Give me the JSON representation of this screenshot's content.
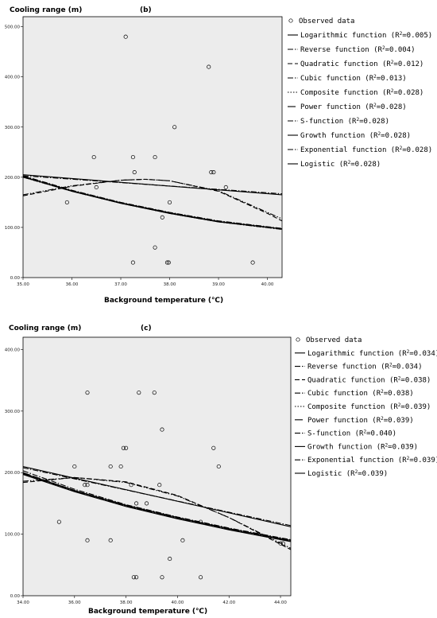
{
  "chart_data": [
    {
      "type": "scatter",
      "panel_label": "(b)",
      "ylabel": "Cooling range (m)",
      "xlabel": "Background temperature (℃)",
      "xlim": [
        35.0,
        40.3
      ],
      "ylim": [
        0,
        520
      ],
      "xticks": [
        "35.00",
        "36.00",
        "37.00",
        "38.00",
        "39.00",
        "40.00"
      ],
      "yticks": [
        "0.00",
        "100.00",
        "200.00",
        "300.00",
        "400.00",
        "500.00"
      ],
      "observed": {
        "label": "Observed data",
        "points": [
          [
            35.9,
            150
          ],
          [
            36.45,
            240
          ],
          [
            36.5,
            180
          ],
          [
            37.1,
            480
          ],
          [
            37.25,
            30
          ],
          [
            37.25,
            240
          ],
          [
            37.28,
            210
          ],
          [
            37.7,
            240
          ],
          [
            37.7,
            60
          ],
          [
            37.85,
            120
          ],
          [
            37.95,
            30
          ],
          [
            37.98,
            30
          ],
          [
            38.0,
            150
          ],
          [
            38.1,
            300
          ],
          [
            38.8,
            420
          ],
          [
            38.85,
            210
          ],
          [
            38.9,
            210
          ],
          [
            39.15,
            180
          ],
          [
            39.7,
            30
          ]
        ]
      },
      "series": [
        {
          "name": "Logarithmic function (R",
          "r2": "0.005",
          "style": "solid",
          "values": [
            [
              35.0,
              205
            ],
            [
              40.3,
              165
            ]
          ]
        },
        {
          "name": "Reverse function (R",
          "r2": "0.004",
          "style": "dashdot",
          "values": [
            [
              35.0,
              203
            ],
            [
              40.3,
              167
            ]
          ]
        },
        {
          "name": "Quadratic function (R",
          "r2": "0.012",
          "style": "dash",
          "values": [
            [
              35.0,
              163
            ],
            [
              36.0,
              182
            ],
            [
              37.0,
              194
            ],
            [
              37.5,
              196
            ],
            [
              38.0,
              193
            ],
            [
              39.0,
              172
            ],
            [
              40.0,
              128
            ],
            [
              40.3,
              113
            ]
          ]
        },
        {
          "name": "Cubic function (R",
          "r2": "0.013",
          "style": "dashdotdot",
          "values": [
            [
              35.0,
              165
            ],
            [
              36.0,
              183
            ],
            [
              37.0,
              194
            ],
            [
              37.5,
              196
            ],
            [
              38.0,
              193
            ],
            [
              39.0,
              173
            ],
            [
              40.0,
              130
            ],
            [
              40.3,
              117
            ]
          ]
        },
        {
          "name": "Composite function (R",
          "r2": "0.028",
          "style": "dot",
          "values": [
            [
              35.0,
              200
            ],
            [
              36.0,
              172
            ],
            [
              37.0,
              148
            ],
            [
              38.0,
              128
            ],
            [
              39.0,
              111
            ],
            [
              40.3,
              96
            ]
          ]
        },
        {
          "name": "Power function (R",
          "r2": "0.028",
          "style": "longdash",
          "values": [
            [
              35.0,
              202
            ],
            [
              36.0,
              173
            ],
            [
              37.0,
              149
            ],
            [
              38.0,
              129
            ],
            [
              39.0,
              112
            ],
            [
              40.3,
              97
            ]
          ]
        },
        {
          "name": "S-function (R",
          "r2": "0.028",
          "style": "dashdot",
          "values": [
            [
              35.0,
              203
            ],
            [
              36.0,
              174
            ],
            [
              37.0,
              150
            ],
            [
              38.0,
              130
            ],
            [
              39.0,
              113
            ],
            [
              40.3,
              98
            ]
          ]
        },
        {
          "name": "Growth function (R",
          "r2": "0.028",
          "style": "solid",
          "values": [
            [
              35.0,
              201
            ],
            [
              36.0,
              172
            ],
            [
              37.0,
              148
            ],
            [
              38.0,
              128
            ],
            [
              39.0,
              111
            ],
            [
              40.3,
              97
            ]
          ]
        },
        {
          "name": "Exponential function (R",
          "r2": "0.028",
          "style": "dashdot",
          "values": [
            [
              35.0,
              200
            ],
            [
              36.0,
              172
            ],
            [
              37.0,
              148
            ],
            [
              38.0,
              128
            ],
            [
              39.0,
              111
            ],
            [
              40.3,
              96
            ]
          ]
        },
        {
          "name": "Logistic  (R",
          "r2": "0.028",
          "style": "solid",
          "values": [
            [
              35.0,
              201
            ],
            [
              36.0,
              173
            ],
            [
              37.0,
              149
            ],
            [
              38.0,
              129
            ],
            [
              39.0,
              112
            ],
            [
              40.3,
              97
            ]
          ]
        }
      ]
    },
    {
      "type": "scatter",
      "panel_label": "(c)",
      "ylabel": "Cooling range (m)",
      "xlabel": "Background temperature (℃)",
      "xlim": [
        34.0,
        44.4
      ],
      "ylim": [
        0,
        420
      ],
      "xticks": [
        "34.00",
        "36.00",
        "38.00",
        "40.00",
        "42.00",
        "44.00"
      ],
      "yticks": [
        "0.00",
        "100.00",
        "200.00",
        "300.00",
        "400.00"
      ],
      "observed": {
        "label": "Observed data",
        "points": [
          [
            35.4,
            120
          ],
          [
            36.0,
            210
          ],
          [
            36.4,
            180
          ],
          [
            36.5,
            180
          ],
          [
            36.5,
            330
          ],
          [
            36.5,
            90
          ],
          [
            37.4,
            210
          ],
          [
            37.4,
            90
          ],
          [
            37.8,
            210
          ],
          [
            37.9,
            240
          ],
          [
            38.0,
            240
          ],
          [
            38.2,
            180
          ],
          [
            38.3,
            30
          ],
          [
            38.4,
            30
          ],
          [
            38.4,
            150
          ],
          [
            38.5,
            330
          ],
          [
            38.8,
            150
          ],
          [
            39.1,
            330
          ],
          [
            39.3,
            180
          ],
          [
            39.4,
            270
          ],
          [
            39.4,
            30
          ],
          [
            39.7,
            60
          ],
          [
            40.2,
            90
          ],
          [
            40.9,
            30
          ],
          [
            40.9,
            120
          ],
          [
            41.4,
            240
          ],
          [
            41.6,
            210
          ],
          [
            44.0,
            85
          ],
          [
            44.1,
            85
          ]
        ]
      },
      "series": [
        {
          "name": "Logarithmic function (R",
          "r2": "0.034",
          "style": "solid",
          "values": [
            [
              34.0,
              210
            ],
            [
              44.4,
              112
            ]
          ]
        },
        {
          "name": "Reverse function (R",
          "r2": "0.034",
          "style": "dashdot",
          "values": [
            [
              34.0,
              208
            ],
            [
              44.4,
              114
            ]
          ]
        },
        {
          "name": "Quadratic function (R",
          "r2": "0.038",
          "style": "dash",
          "values": [
            [
              34.0,
              184
            ],
            [
              36.0,
              192
            ],
            [
              38.0,
              185
            ],
            [
              40.0,
              163
            ],
            [
              42.0,
              127
            ],
            [
              44.4,
              75
            ]
          ]
        },
        {
          "name": "Cubic function (R",
          "r2": "0.038",
          "style": "dashdotdot",
          "values": [
            [
              34.0,
              186
            ],
            [
              36.0,
              192
            ],
            [
              38.0,
              184
            ],
            [
              40.0,
              162
            ],
            [
              42.0,
              127
            ],
            [
              44.4,
              77
            ]
          ]
        },
        {
          "name": "Composite function (R",
          "r2": "0.039",
          "style": "dot",
          "values": [
            [
              34.0,
              198
            ],
            [
              36.0,
              170
            ],
            [
              38.0,
              146
            ],
            [
              40.0,
              126
            ],
            [
              42.0,
              108
            ],
            [
              44.4,
              89
            ]
          ]
        },
        {
          "name": "Power function (R",
          "r2": "0.039",
          "style": "longdash",
          "values": [
            [
              34.0,
              200
            ],
            [
              36.0,
              171
            ],
            [
              38.0,
              147
            ],
            [
              40.0,
              127
            ],
            [
              42.0,
              109
            ],
            [
              44.4,
              90
            ]
          ]
        },
        {
          "name": "S-function (R",
          "r2": "0.040",
          "style": "dashdot",
          "values": [
            [
              34.0,
              203
            ],
            [
              36.0,
              173
            ],
            [
              38.0,
              148
            ],
            [
              40.0,
              128
            ],
            [
              42.0,
              110
            ],
            [
              44.4,
              91
            ]
          ]
        },
        {
          "name": "Growth function (R",
          "r2": "0.039",
          "style": "solid",
          "values": [
            [
              34.0,
              197
            ],
            [
              36.0,
              169
            ],
            [
              38.0,
              145
            ],
            [
              40.0,
              125
            ],
            [
              42.0,
              107
            ],
            [
              44.4,
              88
            ]
          ]
        },
        {
          "name": "Exponential function (R",
          "r2": "0.039",
          "style": "dashdot",
          "values": [
            [
              34.0,
              198
            ],
            [
              36.0,
              170
            ],
            [
              38.0,
              146
            ],
            [
              40.0,
              126
            ],
            [
              42.0,
              108
            ],
            [
              44.4,
              89
            ]
          ]
        },
        {
          "name": "Logistic  (R",
          "r2": "0.039",
          "style": "solid",
          "values": [
            [
              34.0,
              199
            ],
            [
              36.0,
              171
            ],
            [
              38.0,
              147
            ],
            [
              40.0,
              127
            ],
            [
              42.0,
              109
            ],
            [
              44.4,
              90
            ]
          ]
        }
      ]
    }
  ],
  "colors": {
    "plot_background": "#ececec",
    "lines": "#000000",
    "markers": "#000000"
  }
}
